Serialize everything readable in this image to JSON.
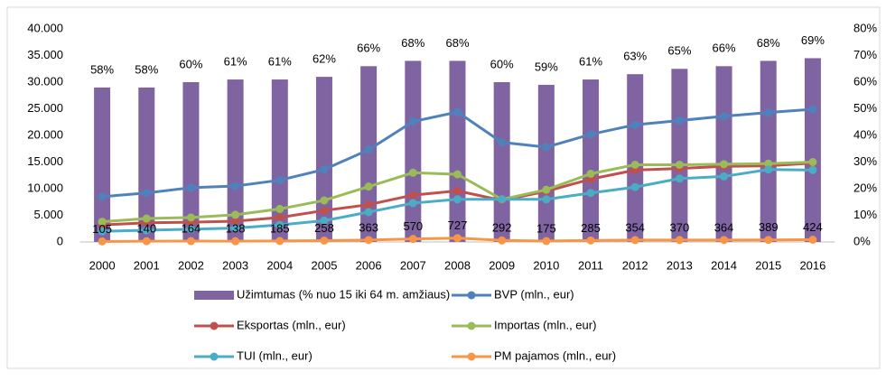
{
  "chart_data": {
    "type": "bar_line",
    "categories": [
      "2000",
      "2001",
      "2002",
      "2003",
      "2004",
      "2005",
      "2006",
      "2007",
      "2008",
      "2009",
      "2010",
      "2011",
      "2012",
      "2013",
      "2014",
      "2015",
      "2016"
    ],
    "ylim": [
      0,
      40000
    ],
    "yticks": [
      0,
      {
        "value": 5000,
        "label": "5.000"
      },
      {
        "value": 10000,
        "label": "10.000"
      },
      {
        "value": 15000,
        "label": "15.000"
      },
      {
        "value": 20000,
        "label": "20.000"
      },
      {
        "value": 25000,
        "label": "25.000"
      },
      {
        "value": 30000,
        "label": "30.000"
      },
      {
        "value": 35000,
        "label": "35.000"
      },
      {
        "value": 40000,
        "label": "40.000"
      }
    ],
    "y2lim": [
      0,
      80
    ],
    "y2ticks": [
      {
        "value": 0,
        "label": "0%"
      },
      {
        "value": 10,
        "label": "10%"
      },
      {
        "value": 20,
        "label": "20%"
      },
      {
        "value": 30,
        "label": "30%"
      },
      {
        "value": 40,
        "label": "40%"
      },
      {
        "value": 50,
        "label": "50%"
      },
      {
        "value": 60,
        "label": "60%"
      },
      {
        "value": 70,
        "label": "70%"
      },
      {
        "value": 80,
        "label": "80%"
      }
    ],
    "grid": false,
    "legend": "bottom",
    "series": [
      {
        "name": "Užimtumas (% nuo 15 iki 64 m. amžiaus)",
        "type": "bar",
        "axis": "y2",
        "color": "#8064a2",
        "values": [
          58,
          58,
          60,
          61,
          61,
          62,
          66,
          68,
          68,
          60,
          59,
          61,
          63,
          65,
          66,
          68,
          69
        ],
        "value_labels": [
          "58%",
          "58%",
          "60%",
          "61%",
          "61%",
          "62%",
          "66%",
          "68%",
          "68%",
          "60%",
          "59%",
          "61%",
          "63%",
          "65%",
          "66%",
          "68%",
          "69%"
        ]
      },
      {
        "name": "BVP (mln., eur)",
        "type": "line",
        "color": "#4f81bd",
        "values": [
          8500,
          9200,
          10200,
          10500,
          11600,
          13600,
          17300,
          22600,
          24400,
          18700,
          17800,
          20200,
          22000,
          22800,
          23600,
          24300,
          24900
        ]
      },
      {
        "name": "Eksportas (mln., eur)",
        "type": "line",
        "color": "#c0504d",
        "values": [
          3200,
          3600,
          3700,
          3900,
          4600,
          5900,
          7000,
          8800,
          9600,
          7800,
          9500,
          11800,
          13500,
          13800,
          14200,
          14300,
          14800
        ]
      },
      {
        "name": "Importas (mln., eur)",
        "type": "line",
        "color": "#9bbb59",
        "values": [
          3800,
          4400,
          4600,
          5100,
          6200,
          7800,
          10400,
          13000,
          12700,
          8000,
          9800,
          12800,
          14500,
          14500,
          14600,
          14700,
          15000
        ]
      },
      {
        "name": "TUI (mln., eur)",
        "type": "line",
        "color": "#4bacc6",
        "values": [
          2000,
          2200,
          2400,
          2600,
          3200,
          4000,
          5600,
          7300,
          8000,
          8000,
          8000,
          9200,
          10300,
          11900,
          12300,
          13600,
          13500
        ]
      },
      {
        "name": "PM pajamos (mln., eur)",
        "type": "line",
        "color": "#f79646",
        "show_labels": true,
        "values": [
          105,
          140,
          164,
          138,
          185,
          258,
          363,
          570,
          727,
          292,
          175,
          285,
          354,
          370,
          364,
          389,
          424
        ]
      }
    ]
  }
}
